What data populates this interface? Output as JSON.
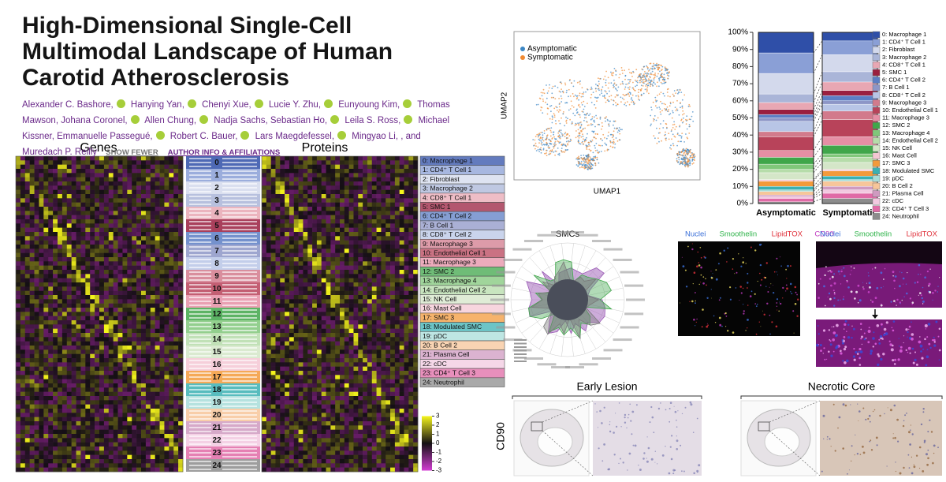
{
  "header": {
    "title": "High-Dimensional Single-Cell Multimodal Landscape of Human Carotid Atherosclerosis",
    "authors": [
      "Alexander C. Bashore,",
      "Hanying Yan,",
      "Chenyi Xue,",
      "Lucie Y. Zhu,",
      "Eunyoung Kim,",
      "Thomas Mawson,",
      "Johana Coronel,",
      "Allen Chung,",
      "Nadja Sachs,",
      "Sebastian Ho,",
      "Leila S. Ross,",
      "Michael Kissner,",
      "Emmanuelle Passegué,",
      "Robert C. Bauer,",
      "Lars Maegdefessel,",
      "Mingyao Li,",
      ", and Muredach P. Reilly"
    ],
    "show_fewer": "SHOW FEWER",
    "author_info": "AUTHOR INFO & AFFILIATIONS"
  },
  "heatmap": {
    "genes_label": "Genes",
    "proteins_label": "Proteins",
    "cluster_numbers": [
      0,
      1,
      2,
      3,
      4,
      5,
      6,
      7,
      8,
      9,
      10,
      11,
      12,
      13,
      14,
      15,
      16,
      17,
      18,
      19,
      20,
      21,
      22,
      23,
      24
    ],
    "scale_ticks": [
      3,
      2,
      1,
      0,
      -1,
      -2,
      -3
    ]
  },
  "umap": {
    "legend": [
      "Asymptomatic",
      "Symptomatic"
    ],
    "colors": [
      "#3c86c4",
      "#f08a32"
    ],
    "x_label": "UMAP1",
    "y_label": "UMAP2"
  },
  "chart_data": {
    "type": "stacked_bar",
    "categories": [
      "Asymptomatic",
      "Symptomatic"
    ],
    "ylim": [
      0,
      100
    ],
    "yticks": [
      {
        "value": 0,
        "label": "0%"
      },
      {
        "value": 10,
        "label": "10%"
      },
      {
        "value": 20,
        "label": "20%"
      },
      {
        "value": 30,
        "label": "30%"
      },
      {
        "value": 40,
        "label": "40%"
      },
      {
        "value": 50,
        "label": "50%"
      },
      {
        "value": 60,
        "label": "60%"
      },
      {
        "value": 70,
        "label": "70%"
      },
      {
        "value": 80,
        "label": "80%"
      },
      {
        "value": 90,
        "label": "90%"
      },
      {
        "value": 100,
        "label": "100%"
      }
    ],
    "series": [
      {
        "name": "0: Macrophage 1",
        "color": "#2f4fa8",
        "values": [
          12,
          5
        ]
      },
      {
        "name": "1: CD4⁺ T Cell 1",
        "color": "#8a9fd6",
        "values": [
          12,
          8
        ]
      },
      {
        "name": "2: Fibroblast",
        "color": "#d3d9ec",
        "values": [
          12,
          10
        ]
      },
      {
        "name": "3: Macrophage 2",
        "color": "#aab5d8",
        "values": [
          5,
          6
        ]
      },
      {
        "name": "4: CD8⁺ T Cell 1",
        "color": "#e8a7b3",
        "values": [
          4,
          5
        ]
      },
      {
        "name": "5: SMC 1",
        "color": "#9a1f3f",
        "values": [
          3,
          3
        ]
      },
      {
        "name": "6: CD4⁺ T Cell 2",
        "color": "#5c7ec4",
        "values": [
          2,
          3
        ]
      },
      {
        "name": "7: B Cell 1",
        "color": "#8d96c7",
        "values": [
          2,
          2
        ]
      },
      {
        "name": "8: CD8⁺ T Cell 2",
        "color": "#b8c5e6",
        "values": [
          6,
          4
        ]
      },
      {
        "name": "9: Macrophage 3",
        "color": "#d27a8c",
        "values": [
          3,
          5
        ]
      },
      {
        "name": "10: Endothelial Cell 1",
        "color": "#b8435a",
        "values": [
          8,
          10
        ]
      },
      {
        "name": "11: Macrophage 3",
        "color": "#e58fa5",
        "values": [
          4,
          5
        ]
      },
      {
        "name": "12: SMC 2",
        "color": "#3fa64a",
        "values": [
          4,
          5
        ]
      },
      {
        "name": "13: Macrophage 4",
        "color": "#80c77a",
        "values": [
          3,
          2
        ]
      },
      {
        "name": "14: Endothelial Cell 2",
        "color": "#b6dcaa",
        "values": [
          2,
          3
        ]
      },
      {
        "name": "15: NK Cell",
        "color": "#d4e6c8",
        "values": [
          4,
          4
        ]
      },
      {
        "name": "16: Mast Cell",
        "color": "#f4c7d3",
        "values": [
          1,
          1
        ]
      },
      {
        "name": "17: SMC 3",
        "color": "#f39a3b",
        "values": [
          3,
          3
        ]
      },
      {
        "name": "18: Modulated SMC",
        "color": "#3bb0b3",
        "values": [
          2,
          2
        ]
      },
      {
        "name": "19: pDC",
        "color": "#a8ddd9",
        "values": [
          1,
          1
        ]
      },
      {
        "name": "20: B Cell 2",
        "color": "#f7c69a",
        "values": [
          2,
          3
        ]
      },
      {
        "name": "21: Plasma Cell",
        "color": "#cf9ac0",
        "values": [
          1,
          2
        ]
      },
      {
        "name": "22: cDC",
        "color": "#f2c9e0",
        "values": [
          1,
          2
        ]
      },
      {
        "name": "23: CD4⁺ T Cell 3",
        "color": "#e06aa6",
        "values": [
          2,
          3
        ]
      },
      {
        "name": "24: Neutrophil",
        "color": "#8c8c8c",
        "values": [
          1,
          3
        ]
      }
    ]
  },
  "radar": {
    "title": "SMCs"
  },
  "microscopy": {
    "channels": [
      "Nuclei",
      "Smoothelin",
      "LipidTOX",
      "CD90"
    ],
    "colors": [
      "#3a6fd8",
      "#2fb34a",
      "#e0303a",
      "#c03ac0"
    ]
  },
  "histology": {
    "stain": "CD90",
    "panels": [
      "Early Lesion",
      "Necrotic Core"
    ]
  }
}
